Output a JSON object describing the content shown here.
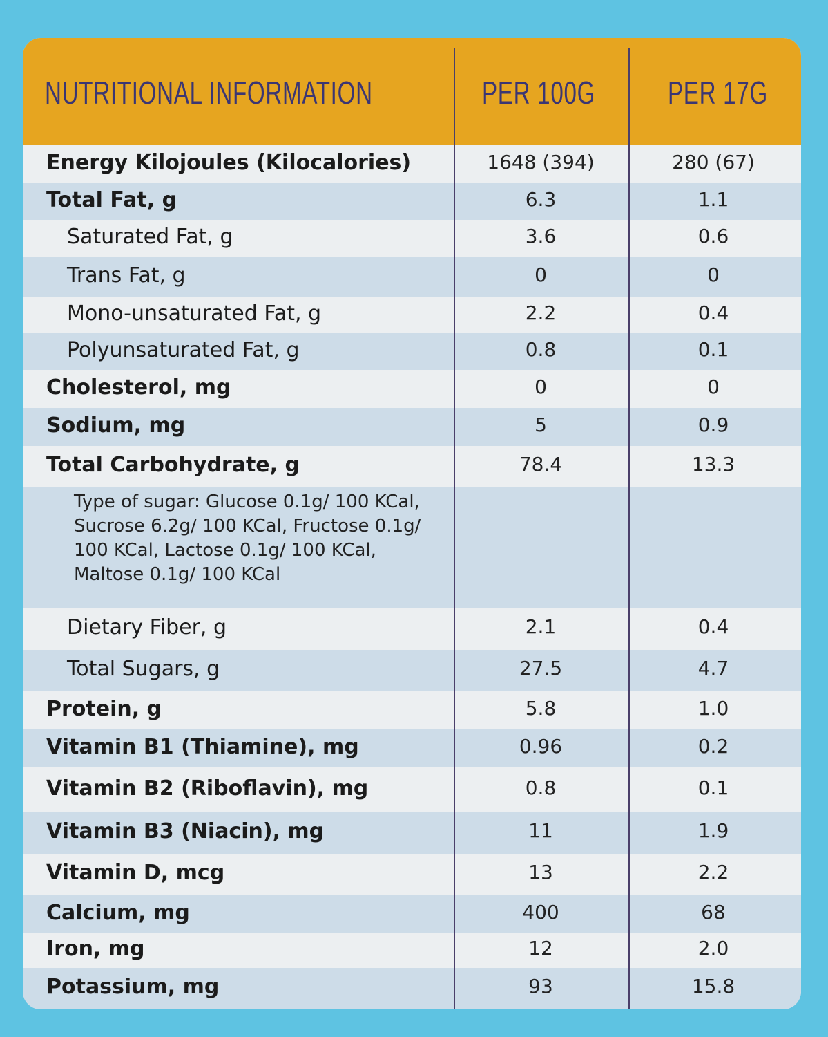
{
  "header": {
    "title": "NUTRITIONAL INFORMATION",
    "col1": "PER 100G",
    "col2": "PER 17G"
  },
  "colors": {
    "background": "#5ec3e2",
    "header": "#e6a520",
    "row_light": "#eceff1",
    "row_blue": "#cddce8",
    "header_text": "#3b3673"
  },
  "rows": [
    {
      "label": "Energy Kilojoules (Kilocalories)",
      "per100": "1648 (394)",
      "per17": "280 (67)"
    },
    {
      "label": "Total Fat, g",
      "per100": "6.3",
      "per17": "1.1"
    },
    {
      "label": "Saturated Fat, g",
      "per100": "3.6",
      "per17": "0.6"
    },
    {
      "label": "Trans Fat, g",
      "per100": "0",
      "per17": "0"
    },
    {
      "label": "Mono-unsaturated Fat, g",
      "per100": "2.2",
      "per17": "0.4"
    },
    {
      "label": "Polyunsaturated Fat, g",
      "per100": "0.8",
      "per17": "0.1"
    },
    {
      "label": "Cholesterol, mg",
      "per100": "0",
      "per17": "0"
    },
    {
      "label": "Sodium, mg",
      "per100": "5",
      "per17": "0.9"
    },
    {
      "label": "Total Carbohydrate, g",
      "per100": "78.4",
      "per17": "13.3"
    },
    {
      "label": "Type of sugar: Glucose 0.1g/ 100 KCal, Sucrose 6.2g/ 100 KCal, Fructose 0.1g/ 100 KCal, Lactose 0.1g/ 100 KCal, Maltose 0.1g/ 100 KCal",
      "per100": "",
      "per17": ""
    },
    {
      "label": "Dietary Fiber, g",
      "per100": "2.1",
      "per17": "0.4"
    },
    {
      "label": "Total Sugars, g",
      "per100": "27.5",
      "per17": "4.7"
    },
    {
      "label": "Protein, g",
      "per100": "5.8",
      "per17": "1.0"
    },
    {
      "label": "Vitamin B1 (Thiamine), mg",
      "per100": "0.96",
      "per17": "0.2"
    },
    {
      "label": "Vitamin B2 (Riboflavin), mg",
      "per100": "0.8",
      "per17": "0.1"
    },
    {
      "label": "Vitamin B3 (Niacin), mg",
      "per100": "11",
      "per17": "1.9"
    },
    {
      "label": "Vitamin D, mcg",
      "per100": "13",
      "per17": "2.2"
    },
    {
      "label": "Calcium, mg",
      "per100": "400",
      "per17": "68"
    },
    {
      "label": "Iron, mg",
      "per100": "12",
      "per17": "2.0"
    },
    {
      "label": "Potassium, mg",
      "per100": "93",
      "per17": "15.8"
    }
  ]
}
